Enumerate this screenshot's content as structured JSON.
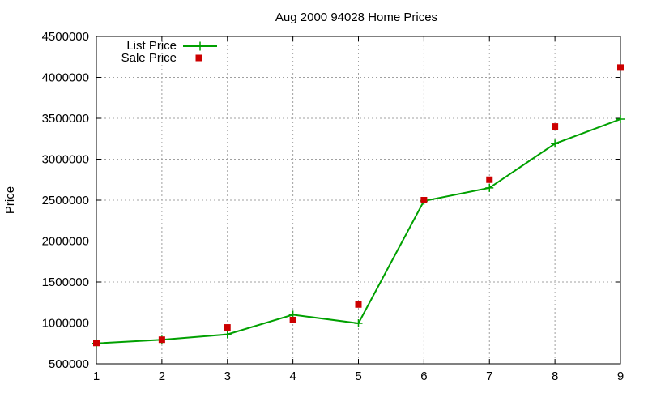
{
  "chart_data": {
    "type": "line",
    "title": "Aug 2000 94028 Home Prices",
    "xlabel": "",
    "ylabel": "Price",
    "x": [
      1,
      2,
      3,
      4,
      5,
      6,
      7,
      8,
      9
    ],
    "xlim": [
      1,
      9
    ],
    "ylim": [
      500000,
      4500000
    ],
    "x_ticks": [
      "1",
      "2",
      "3",
      "4",
      "5",
      "6",
      "7",
      "8",
      "9"
    ],
    "y_ticks": [
      "500000",
      "1000000",
      "1500000",
      "2000000",
      "2500000",
      "3000000",
      "3500000",
      "4000000",
      "4500000"
    ],
    "grid": true,
    "legend_position": "top-left",
    "series": [
      {
        "name": "List Price",
        "style": "line-with-plus-markers",
        "color": "#00a000",
        "values": [
          750000,
          795000,
          860000,
          1100000,
          995000,
          2490000,
          2650000,
          3190000,
          3490000
        ]
      },
      {
        "name": "Sale Price",
        "style": "square-markers",
        "color": "#cc0000",
        "values": [
          755000,
          795000,
          945000,
          1035000,
          1225000,
          2500000,
          2750000,
          3400000,
          4120000
        ]
      }
    ]
  }
}
